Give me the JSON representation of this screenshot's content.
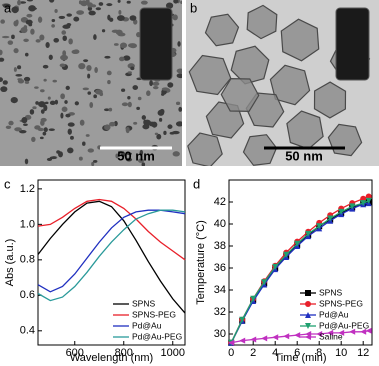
{
  "panel_labels": [
    "a",
    "b",
    "c",
    "d"
  ],
  "scale_bars": [
    "50 nm",
    "50 nm"
  ],
  "chart_data": [
    {
      "type": "line",
      "x_label": "Wavelength (nm)",
      "y_label": "Abs (a.u.)",
      "x": [
        450,
        500,
        550,
        600,
        650,
        700,
        750,
        800,
        850,
        900,
        950,
        1000,
        1050
      ],
      "xlim": [
        450,
        1050
      ],
      "xticks": [
        600,
        800,
        1000
      ],
      "ylim": [
        0.32,
        1.25
      ],
      "yticks": [
        0.4,
        0.6,
        0.8,
        {
          "value": 1.0,
          "label": "1.0"
        },
        1.2
      ],
      "legend": "lower right",
      "series": [
        {
          "name": "SPNS",
          "color": "#000000",
          "values": [
            0.83,
            0.92,
            1.0,
            1.07,
            1.12,
            1.13,
            1.1,
            1.02,
            0.91,
            0.79,
            0.68,
            0.58,
            0.5
          ]
        },
        {
          "name": "SPNS-PEG",
          "color": "#e8202a",
          "values": [
            0.99,
            1.0,
            1.04,
            1.09,
            1.13,
            1.14,
            1.13,
            1.09,
            1.03,
            0.96,
            0.9,
            0.85,
            0.8
          ]
        },
        {
          "name": "Pd@Au",
          "color": "#2030c0",
          "values": [
            0.66,
            0.62,
            0.65,
            0.72,
            0.81,
            0.9,
            0.98,
            1.04,
            1.07,
            1.08,
            1.08,
            1.07,
            1.06
          ]
        },
        {
          "name": "Pd@Au-PEG",
          "color": "#2a9a9a",
          "values": [
            0.61,
            0.57,
            0.59,
            0.65,
            0.73,
            0.82,
            0.9,
            0.97,
            1.03,
            1.06,
            1.08,
            1.08,
            1.07
          ]
        }
      ]
    },
    {
      "type": "line",
      "x_label": "Time (min)",
      "y_label": "Temperature (°C)",
      "x": [
        0,
        1,
        2,
        3,
        4,
        5,
        6,
        7,
        8,
        9,
        10,
        11,
        12,
        12.5
      ],
      "xlim": [
        -0.2,
        12.8
      ],
      "xticks": [
        0,
        2,
        4,
        6,
        8,
        10,
        12
      ],
      "ylim": [
        29,
        44
      ],
      "yticks": [
        30,
        32,
        34,
        36,
        38,
        40,
        42
      ],
      "legend": "lower right",
      "series": [
        {
          "name": "SPNS",
          "color": "#000000",
          "marker": "square",
          "values": [
            29.2,
            31.2,
            33.1,
            34.6,
            36.0,
            37.1,
            38.1,
            39.0,
            39.8,
            40.4,
            41.0,
            41.5,
            41.9,
            42.0
          ]
        },
        {
          "name": "SPNS-PEG",
          "color": "#e8202a",
          "marker": "circle",
          "values": [
            29.2,
            31.3,
            33.2,
            34.8,
            36.2,
            37.4,
            38.4,
            39.3,
            40.1,
            40.8,
            41.4,
            41.9,
            42.3,
            42.5
          ]
        },
        {
          "name": "Pd@Au",
          "color": "#2030c0",
          "marker": "triangle-up",
          "values": [
            29.2,
            31.2,
            33.0,
            34.5,
            35.9,
            37.0,
            38.0,
            38.9,
            39.6,
            40.3,
            40.9,
            41.4,
            41.8,
            41.9
          ]
        },
        {
          "name": "Pd@Au-PEG",
          "color": "#20a070",
          "marker": "triangle-down",
          "values": [
            29.2,
            31.3,
            33.2,
            34.7,
            36.1,
            37.2,
            38.2,
            39.1,
            39.8,
            40.5,
            41.1,
            41.6,
            41.9,
            42.1
          ]
        },
        {
          "name": "Saline",
          "color": "#c030c0",
          "marker": "triangle-left",
          "values": [
            29.2,
            29.4,
            29.5,
            29.6,
            29.7,
            29.8,
            29.9,
            30.0,
            30.0,
            30.1,
            30.1,
            30.2,
            30.2,
            30.3
          ]
        }
      ]
    }
  ]
}
